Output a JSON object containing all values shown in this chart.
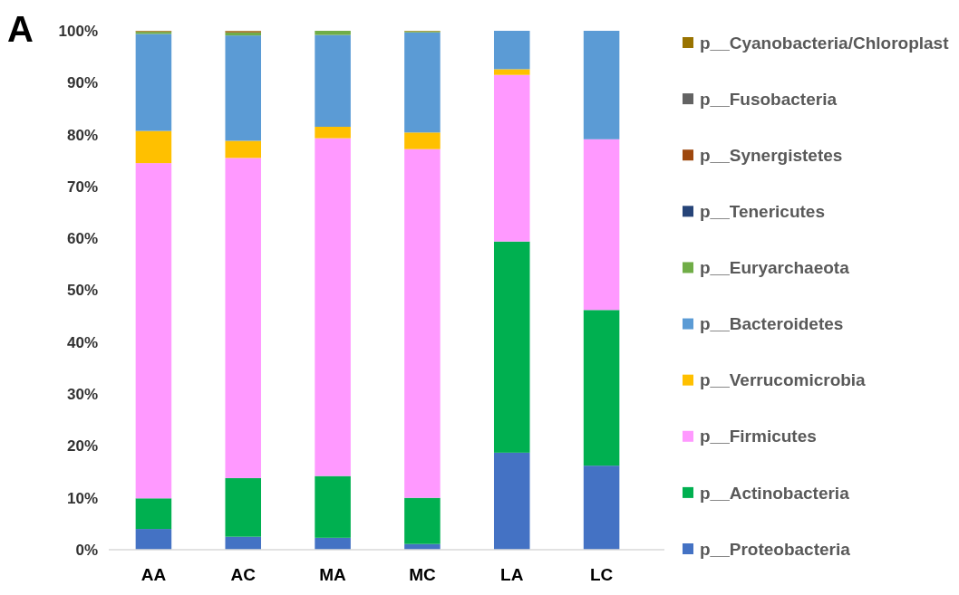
{
  "chart_data": {
    "type": "bar",
    "title": "A",
    "stacked": true,
    "categories": [
      "AA",
      "AC",
      "MA",
      "MC",
      "LA",
      "LC"
    ],
    "series": [
      {
        "name": "p__Proteobacteria",
        "color": "#4472c4",
        "values": [
          4.0,
          2.5,
          2.3,
          1.1,
          18.7,
          16.2
        ]
      },
      {
        "name": "p__Actinobacteria",
        "color": "#00b050",
        "values": [
          5.9,
          11.3,
          11.9,
          8.9,
          40.7,
          30.0
        ]
      },
      {
        "name": "p__Firmicutes",
        "color": "#ff99ff",
        "values": [
          64.6,
          61.7,
          65.1,
          67.2,
          32.1,
          32.9
        ]
      },
      {
        "name": "p__Verrucomicrobia",
        "color": "#ffc000",
        "values": [
          6.2,
          3.3,
          2.2,
          3.2,
          1.1,
          0
        ]
      },
      {
        "name": "p__Bacteroidetes",
        "color": "#5b9bd5",
        "values": [
          18.7,
          20.3,
          17.7,
          19.3,
          7.4,
          20.9
        ]
      },
      {
        "name": "p__Euryarchaeota",
        "color": "#70ad47",
        "values": [
          0.4,
          0.6,
          0.8,
          0.2,
          0,
          0
        ]
      },
      {
        "name": "p__Tenericutes",
        "color": "#264478",
        "values": [
          0,
          0,
          0,
          0,
          0,
          0
        ]
      },
      {
        "name": "p__Synergistetes",
        "color": "#9e480e",
        "values": [
          0.1,
          0.2,
          0,
          0,
          0,
          0
        ]
      },
      {
        "name": "p__Fusobacteria",
        "color": "#636363",
        "values": [
          0,
          0,
          0,
          0,
          0,
          0
        ]
      },
      {
        "name": "p__Cyanobacteria/Chloroplast",
        "color": "#997300",
        "values": [
          0.1,
          0.1,
          0,
          0.1,
          0,
          0
        ]
      }
    ],
    "ylim": [
      0,
      100
    ],
    "yticks": [
      {
        "value": 0,
        "label": "0%"
      },
      {
        "value": 10,
        "label": "10%"
      },
      {
        "value": 20,
        "label": "20%"
      },
      {
        "value": 30,
        "label": "30%"
      },
      {
        "value": 40,
        "label": "40%"
      },
      {
        "value": 50,
        "label": "50%"
      },
      {
        "value": 60,
        "label": "60%"
      },
      {
        "value": 70,
        "label": "70%"
      },
      {
        "value": 80,
        "label": "80%"
      },
      {
        "value": 90,
        "label": "90%"
      },
      {
        "value": 100,
        "label": "100%"
      }
    ],
    "legend": "right"
  }
}
